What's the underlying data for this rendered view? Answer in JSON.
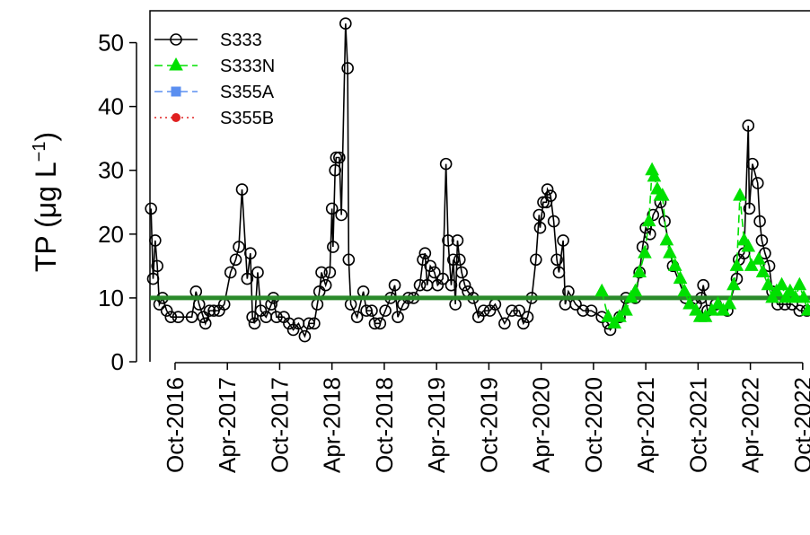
{
  "chart_data": {
    "type": "line",
    "ylabel": [
      "TP (μg L",
      "−1",
      ")"
    ],
    "xlim": [
      2016.51,
      2022.82
    ],
    "xticks": [
      {
        "value": 2016.75,
        "label": "Oct-2016"
      },
      {
        "value": 2017.25,
        "label": "Apr-2017"
      },
      {
        "value": 2017.75,
        "label": "Oct-2017"
      },
      {
        "value": 2018.25,
        "label": "Apr-2018"
      },
      {
        "value": 2018.75,
        "label": "Oct-2018"
      },
      {
        "value": 2019.25,
        "label": "Apr-2019"
      },
      {
        "value": 2019.75,
        "label": "Oct-2019"
      },
      {
        "value": 2020.25,
        "label": "Apr-2020"
      },
      {
        "value": 2020.75,
        "label": "Oct-2020"
      },
      {
        "value": 2021.25,
        "label": "Apr-2021"
      },
      {
        "value": 2021.75,
        "label": "Oct-2021"
      },
      {
        "value": 2022.25,
        "label": "Apr-2022"
      },
      {
        "value": 2022.75,
        "label": "Oct-2022"
      }
    ],
    "ylim": [
      0,
      55
    ],
    "yticks": [
      0,
      10,
      20,
      30,
      40,
      50
    ],
    "hline": {
      "value": 10,
      "color": "#2a8a2a"
    },
    "legend": "top-left",
    "series": [
      {
        "name": "S333",
        "color": "#000000",
        "marker": "circle",
        "dash": "solid",
        "x": [
          2016.52,
          2016.54,
          2016.56,
          2016.58,
          2016.6,
          2016.63,
          2016.67,
          2016.71,
          2016.78,
          2016.91,
          2016.95,
          2016.98,
          2017.02,
          2017.04,
          2017.08,
          2017.12,
          2017.17,
          2017.22,
          2017.28,
          2017.33,
          2017.36,
          2017.39,
          2017.44,
          2017.47,
          2017.49,
          2017.51,
          2017.54,
          2017.57,
          2017.62,
          2017.67,
          2017.69,
          2017.72,
          2017.79,
          2017.84,
          2017.88,
          2017.93,
          2017.99,
          2018.03,
          2018.08,
          2018.11,
          2018.13,
          2018.15,
          2018.19,
          2018.23,
          2018.25,
          2018.26,
          2018.28,
          2018.29,
          2018.32,
          2018.34,
          2018.38,
          2018.4,
          2018.41,
          2018.43,
          2018.49,
          2018.55,
          2018.58,
          2018.63,
          2018.66,
          2018.71,
          2018.76,
          2018.81,
          2018.85,
          2018.88,
          2018.93,
          2018.98,
          2019.03,
          2019.09,
          2019.12,
          2019.14,
          2019.16,
          2019.19,
          2019.23,
          2019.26,
          2019.31,
          2019.34,
          2019.36,
          2019.39,
          2019.41,
          2019.43,
          2019.45,
          2019.47,
          2019.49,
          2019.52,
          2019.55,
          2019.6,
          2019.65,
          2019.7,
          2019.76,
          2019.81,
          2019.9,
          2019.97,
          2020.04,
          2020.08,
          2020.12,
          2020.16,
          2020.2,
          2020.23,
          2020.24,
          2020.27,
          2020.3,
          2020.31,
          2020.34,
          2020.37,
          2020.4,
          2020.42,
          2020.46,
          2020.48,
          2020.51,
          2020.58,
          2020.65,
          2020.73,
          2020.83,
          2020.89,
          2020.91,
          2021.0,
          2021.06,
          2021.15,
          2021.19,
          2021.22,
          2021.25,
          2021.29,
          2021.32,
          2021.39,
          2021.43,
          2021.51,
          2021.63,
          2021.73,
          2021.78,
          2021.8,
          2021.84,
          2021.92,
          2022.03,
          2022.12,
          2022.14,
          2022.19,
          2022.23,
          2022.24,
          2022.27,
          2022.32,
          2022.34,
          2022.36,
          2022.39,
          2022.43,
          2022.46,
          2022.51,
          2022.58,
          2022.65,
          2022.72,
          2022.79
        ],
        "values": [
          24,
          13,
          19,
          15,
          9,
          10,
          8,
          7,
          7,
          7,
          11,
          9,
          7,
          6,
          8,
          8,
          8,
          9,
          14,
          16,
          18,
          27,
          13,
          17,
          7,
          6,
          14,
          8,
          7,
          9,
          10,
          7,
          7,
          6,
          5,
          6,
          4,
          6,
          6,
          9,
          11,
          14,
          12,
          14,
          24,
          18,
          30,
          32,
          32,
          23,
          53,
          46,
          16,
          9,
          7,
          11,
          8,
          8,
          6,
          6,
          8,
          10,
          12,
          7,
          9,
          10,
          10,
          12,
          16,
          17,
          12,
          15,
          14,
          12,
          13,
          31,
          19,
          12,
          16,
          9,
          19,
          16,
          14,
          12,
          11,
          10,
          7,
          8,
          8,
          9,
          6,
          8,
          8,
          6,
          7,
          10,
          16,
          23,
          21,
          25,
          25,
          27,
          26,
          22,
          16,
          14,
          19,
          9,
          11,
          9,
          8,
          8,
          7,
          6,
          5,
          7,
          10,
          10,
          14,
          18,
          21,
          20,
          23,
          25,
          22,
          15,
          10,
          9,
          10,
          12,
          8,
          9,
          8,
          13,
          16,
          17,
          37,
          24,
          31,
          28,
          22,
          19,
          17,
          15,
          11,
          9,
          9,
          9,
          8,
          8
        ]
      },
      {
        "name": "S333N",
        "color": "#00e000",
        "marker": "triangle",
        "dash": "dashed",
        "x": [
          2020.83,
          2020.89,
          2020.95,
          2021.0,
          2021.06,
          2021.11,
          2021.15,
          2021.19,
          2021.24,
          2021.28,
          2021.31,
          2021.33,
          2021.36,
          2021.39,
          2021.41,
          2021.45,
          2021.48,
          2021.53,
          2021.58,
          2021.62,
          2021.67,
          2021.73,
          2021.77,
          2021.82,
          2021.88,
          2021.94,
          2021.99,
          2022.05,
          2022.09,
          2022.12,
          2022.15,
          2022.19,
          2022.23,
          2022.26,
          2022.33,
          2022.37,
          2022.42,
          2022.46,
          2022.5,
          2022.55,
          2022.59,
          2022.63,
          2022.68,
          2022.72,
          2022.76,
          2022.8
        ],
        "values": [
          11,
          7,
          6,
          7,
          8,
          10,
          11,
          14,
          17,
          22,
          30,
          29,
          27,
          26,
          26,
          19,
          17,
          15,
          13,
          11,
          9,
          8,
          7,
          7,
          8,
          9,
          8,
          9,
          12,
          15,
          26,
          19,
          18,
          15,
          16,
          14,
          12,
          10,
          11,
          12,
          10,
          11,
          10,
          12,
          10,
          8
        ]
      },
      {
        "name": "S355A",
        "color": "#5b8ff0",
        "marker": "square",
        "dash": "dashed",
        "x": [],
        "values": []
      },
      {
        "name": "S355B",
        "color": "#e02020",
        "marker": "dot",
        "dash": "dotted",
        "x": [],
        "values": []
      }
    ]
  }
}
